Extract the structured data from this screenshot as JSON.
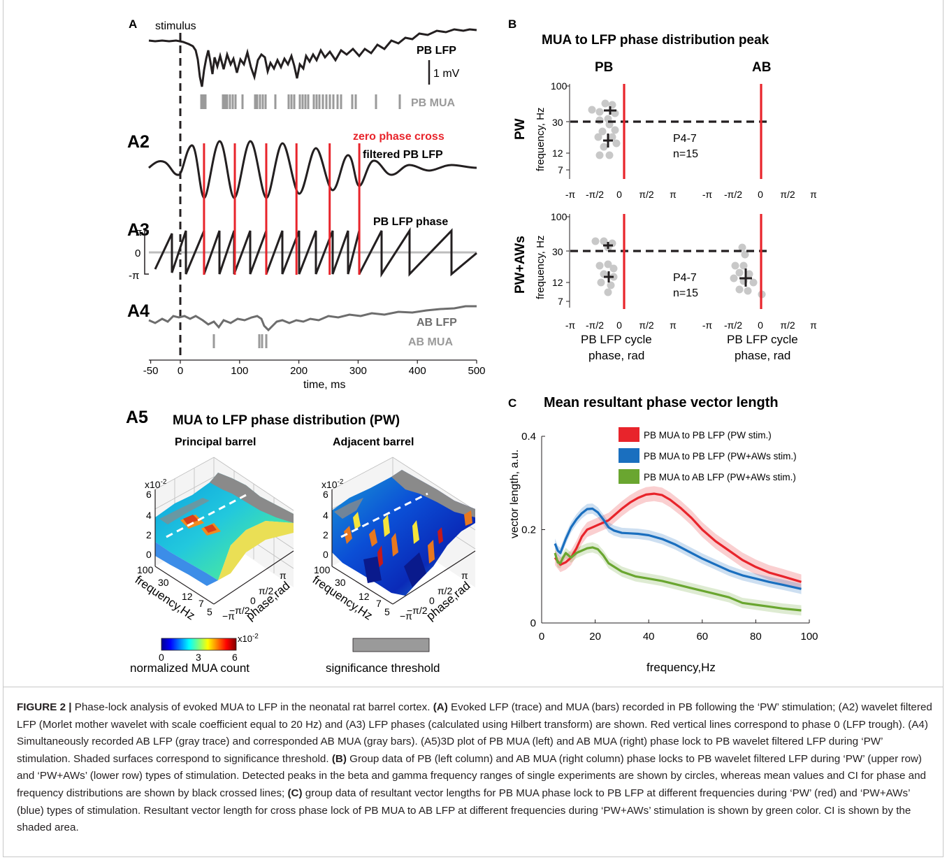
{
  "panel_a": {
    "letter": "A",
    "stimulus": "stimulus",
    "pb_lfp": "PB LFP",
    "scale": "1 mV",
    "pb_mua": "PB MUA",
    "a2": "A2",
    "zero_phase": "zero phase cross",
    "filtered": "filtered PB LFP",
    "a3": "A3",
    "phase_label": "PB LFP phase",
    "phase_ticks": [
      "π",
      "0",
      "-π"
    ],
    "a4": "A4",
    "ab_lfp": "AB LFP",
    "ab_mua": "AB MUA",
    "x_ticks": [
      "-50",
      "0",
      "100",
      "200",
      "300",
      "400",
      "500"
    ],
    "xlabel": "time, ms",
    "zero_cross_ms": [
      40,
      92,
      145,
      196,
      252,
      302
    ]
  },
  "panel_a5": {
    "letter": "A5",
    "title": "MUA to LFP phase distribution (PW)",
    "left_title": "Principal barrel",
    "right_title": "Adjacent barrel",
    "z_exp": "x10",
    "z_exp_sup": "-2",
    "z_ticks": [
      "6",
      "4",
      "2",
      "0"
    ],
    "freq_ticks": [
      "100",
      "30",
      "12",
      "7",
      "5"
    ],
    "freq_label": "frequency,Hz",
    "phase_ticks": [
      "π",
      "π/2",
      "0",
      "−π/2",
      "−π"
    ],
    "phase_label": "phase,rad",
    "colorbar_ticks": [
      "0",
      "3",
      "6"
    ],
    "colorbar_exp": "x10",
    "colorbar_exp_sup": "-2",
    "colorbar_label": "normalized MUA count",
    "threshold_label": "significance threshold"
  },
  "panel_b": {
    "letter": "B",
    "title": "MUA to LFP phase distribution peak",
    "col_pb": "PB",
    "col_ab": "AB",
    "row_pw": "PW",
    "row_pwaws": "PW+AWs",
    "ylabel": "frequency, Hz",
    "y_ticks": [
      "100",
      "30",
      "12",
      "7"
    ],
    "x_ticks": [
      "-π",
      "-π/2",
      "0",
      "π/2",
      "π"
    ],
    "annot_age": "P4-7",
    "annot_n": "n=15",
    "xlabel1": "PB LFP cycle",
    "xlabel2": "phase, rad"
  },
  "panel_c": {
    "letter": "C",
    "title": "Mean resultant phase vector length",
    "ylabel": "vector length, a.u.",
    "xlabel": "frequency,Hz",
    "y_ticks": [
      "0",
      "0.2",
      "0.4"
    ],
    "x_ticks": [
      "0",
      "20",
      "40",
      "60",
      "80",
      "100"
    ],
    "legend": [
      {
        "label": "PB MUA to PB LFP (PW stim.)",
        "color": "#e8242b"
      },
      {
        "label": "PB MUA to PB LFP (PW+AWs stim.)",
        "color": "#1a6fbf"
      },
      {
        "label": "PB MUA to AB LFP (PW+AWs stim.)",
        "color": "#6aa630"
      }
    ]
  },
  "chart_data": {
    "type": "line",
    "title": "Mean resultant phase vector length",
    "xlabel": "frequency,Hz",
    "ylabel": "vector length, a.u.",
    "xlim": [
      0,
      100
    ],
    "ylim": [
      0,
      0.4
    ],
    "legend_position": "top-right",
    "series": [
      {
        "name": "PB MUA to PB LFP (PW stim.)",
        "color": "#e8242b",
        "x": [
          5,
          7,
          9,
          11,
          13,
          15,
          17,
          19,
          21,
          23,
          25,
          27,
          30,
          33,
          36,
          39,
          42,
          45,
          48,
          52,
          56,
          60,
          65,
          70,
          75,
          80,
          85,
          90,
          97
        ],
        "y": [
          0.14,
          0.125,
          0.13,
          0.14,
          0.16,
          0.185,
          0.2,
          0.205,
          0.21,
          0.215,
          0.22,
          0.23,
          0.245,
          0.258,
          0.268,
          0.275,
          0.277,
          0.274,
          0.264,
          0.246,
          0.225,
          0.2,
          0.175,
          0.155,
          0.135,
          0.12,
          0.108,
          0.1,
          0.088
        ]
      },
      {
        "name": "PB MUA to PB LFP (PW+AWs stim.)",
        "color": "#1a6fbf",
        "x": [
          5,
          6,
          7,
          9,
          11,
          13,
          15,
          17,
          19,
          21,
          23,
          25,
          27,
          30,
          33,
          36,
          40,
          45,
          50,
          55,
          60,
          65,
          70,
          75,
          80,
          85,
          90,
          97
        ],
        "y": [
          0.17,
          0.155,
          0.15,
          0.18,
          0.205,
          0.222,
          0.235,
          0.244,
          0.245,
          0.237,
          0.222,
          0.205,
          0.198,
          0.193,
          0.192,
          0.191,
          0.188,
          0.18,
          0.168,
          0.153,
          0.138,
          0.125,
          0.112,
          0.102,
          0.095,
          0.088,
          0.082,
          0.073
        ]
      },
      {
        "name": "PB MUA to AB LFP (PW+AWs stim.)",
        "color": "#6aa630",
        "x": [
          5,
          6,
          7,
          8,
          9,
          11,
          13,
          15,
          17,
          19,
          21,
          23,
          25,
          30,
          35,
          40,
          45,
          50,
          55,
          60,
          65,
          70,
          75,
          80,
          85,
          90,
          97
        ],
        "y": [
          0.15,
          0.13,
          0.128,
          0.14,
          0.15,
          0.14,
          0.15,
          0.155,
          0.16,
          0.162,
          0.158,
          0.145,
          0.128,
          0.11,
          0.1,
          0.095,
          0.09,
          0.083,
          0.076,
          0.069,
          0.062,
          0.055,
          0.043,
          0.039,
          0.035,
          0.031,
          0.027
        ]
      }
    ]
  },
  "caption": {
    "label": "FIGURE 2 |",
    "t1": " Phase-lock analysis of evoked MUA to LFP in the neonatal rat barrel cortex. ",
    "b_a": "(A)",
    "t2": " Evoked LFP (trace) and MUA (bars) recorded in PB following the ‘PW’ stimulation; (A2) wavelet filtered LFP (Morlet mother wavelet with scale coefficient equal to 20 Hz) and (A3) LFP phases (calculated using Hilbert transform) are shown. Red vertical lines correspond to phase 0 (LFP trough). (A4) Simultaneously recorded AB LFP (gray trace) and corresponded AB MUA (gray bars). (A5)3D plot of PB MUA (left) and AB MUA (right) phase lock to PB wavelet filtered LFP during ‘PW’ stimulation. Shaded surfaces correspond to significance threshold. ",
    "b_b": "(B)",
    "t3": " Group data of PB (left column) and AB MUA (right column) phase locks to PB wavelet filtered LFP during ‘PW’ (upper row) and ‘PW+AWs’ (lower row) types of stimulation. Detected peaks in the beta and gamma frequency ranges of single experiments are shown by circles, whereas mean values and CI for phase and frequency distributions are shown by black crossed lines; ",
    "b_c": "(C)",
    "t4": " group data of resultant vector lengths for PB MUA phase lock to PB LFP at different frequencies during ‘PW’ (red) and ‘PW+AWs’ (blue) types of stimulation. Resultant vector length for cross phase lock of PB MUA to AB LFP at different frequencies during ‘PW+AWs’ stimulation is shown by green color. CI is shown by the shaded area."
  }
}
